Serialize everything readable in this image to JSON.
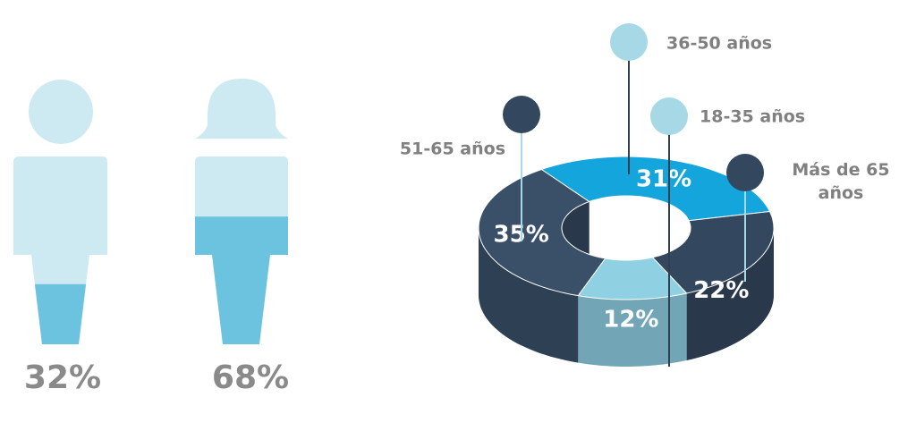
{
  "chart_data": [
    {
      "type": "pictogram",
      "categories": [
        null,
        null
      ],
      "values": [
        32,
        68
      ],
      "value_labels": [
        "32%",
        "68%"
      ],
      "color": "#5bbcdc"
    },
    {
      "type": "pie",
      "categories": [
        "36-50 años",
        "Más de 65 años",
        "18-35 años",
        "51-65 años"
      ],
      "values": [
        31,
        22,
        12,
        35
      ],
      "value_labels": [
        "31%",
        "22%",
        "12%",
        "35%"
      ],
      "colors": [
        "#14a5dc",
        "#33475e",
        "#8fd0e3",
        "#3a5069"
      ]
    }
  ]
}
